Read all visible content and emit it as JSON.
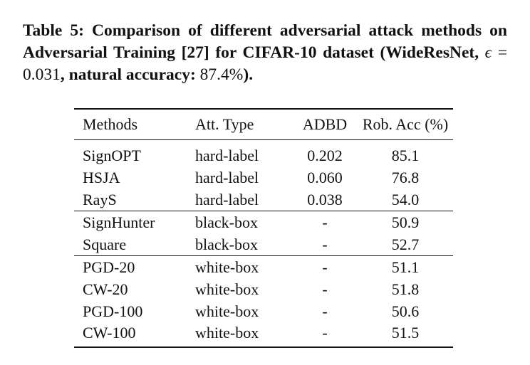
{
  "caption": {
    "part1": "Table 5: Comparison of different adversarial attack methods on Adversarial Training [27] for CIFAR-10 dataset (WideResNet, ",
    "epsilon_symbol": "ϵ",
    "equals": " = ",
    "epsilon_value": "0.031",
    "part2": ", natural accuracy: ",
    "accuracy_value": "87.4%",
    "part3": ")."
  },
  "table": {
    "headers": [
      "Methods",
      "Att. Type",
      "ADBD",
      "Rob. Acc (%)"
    ],
    "rows": [
      {
        "method": "SignOPT",
        "type": "hard-label",
        "adbd": "0.202",
        "rob": "85.1",
        "adbd_bold": false,
        "rob_bold": false
      },
      {
        "method": "HSJA",
        "type": "hard-label",
        "adbd": "0.060",
        "rob": "76.8",
        "adbd_bold": false,
        "rob_bold": false
      },
      {
        "method": "RayS",
        "type": "hard-label",
        "adbd": "0.038",
        "rob": "54.0",
        "adbd_bold": true,
        "rob_bold": true
      },
      {
        "method": "SignHunter",
        "type": "black-box",
        "adbd": "-",
        "rob": "50.9",
        "adbd_bold": false,
        "rob_bold": true
      },
      {
        "method": "Square",
        "type": "black-box",
        "adbd": "-",
        "rob": "52.7",
        "adbd_bold": false,
        "rob_bold": false
      },
      {
        "method": "PGD-20",
        "type": "white-box",
        "adbd": "-",
        "rob": "51.1",
        "adbd_bold": false,
        "rob_bold": false
      },
      {
        "method": "CW-20",
        "type": "white-box",
        "adbd": "-",
        "rob": "51.8",
        "adbd_bold": false,
        "rob_bold": false
      },
      {
        "method": "PGD-100",
        "type": "white-box",
        "adbd": "-",
        "rob": "50.6",
        "adbd_bold": false,
        "rob_bold": true
      },
      {
        "method": "CW-100",
        "type": "white-box",
        "adbd": "-",
        "rob": "51.5",
        "adbd_bold": false,
        "rob_bold": false
      }
    ]
  }
}
